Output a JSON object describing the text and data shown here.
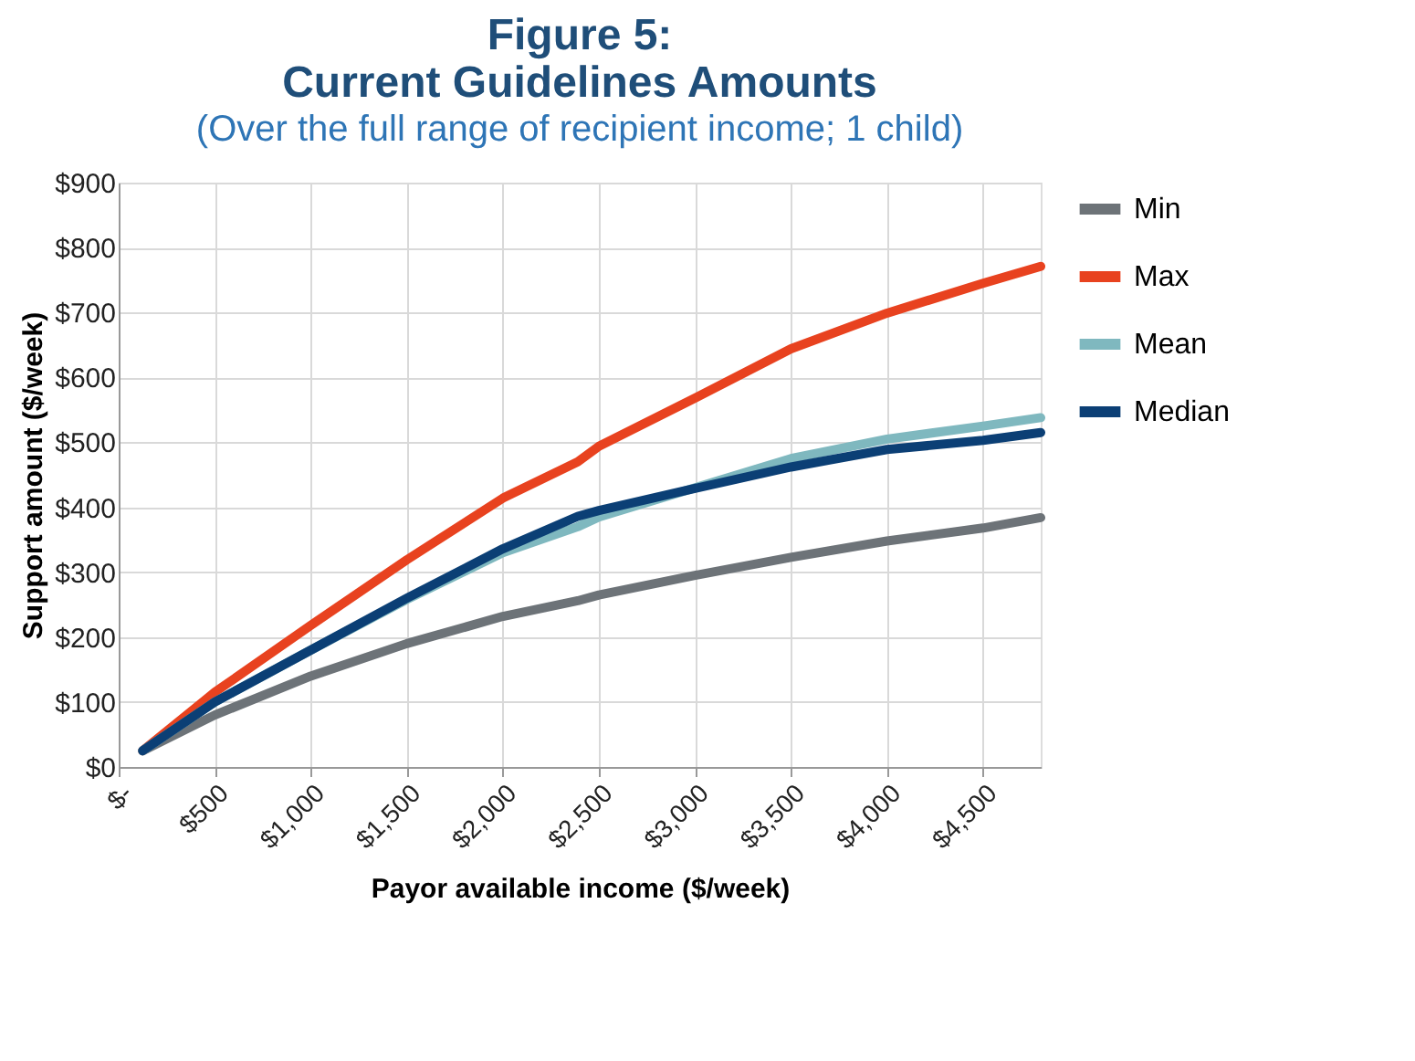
{
  "chart_data": {
    "type": "line",
    "title": "Figure 5:\nCurrent Guidelines Amounts",
    "subtitle": "(Over the full range of recipient income; 1 child)",
    "xlabel": "Payor available income ($/week)",
    "ylabel": "Support amount ($/week)",
    "xlim": [
      0,
      4800
    ],
    "ylim": [
      0,
      900
    ],
    "xticks": [
      {
        "value": 0,
        "label": "$-"
      },
      {
        "value": 500,
        "label": "$500"
      },
      {
        "value": 1000,
        "label": "$1,000"
      },
      {
        "value": 1500,
        "label": "$1,500"
      },
      {
        "value": 2000,
        "label": "$2,000"
      },
      {
        "value": 2500,
        "label": "$2,500"
      },
      {
        "value": 3000,
        "label": "$3,000"
      },
      {
        "value": 3500,
        "label": "$3,500"
      },
      {
        "value": 4000,
        "label": "$4,000"
      },
      {
        "value": 4500,
        "label": "$4,500"
      }
    ],
    "yticks": [
      {
        "value": 0,
        "label": "$0"
      },
      {
        "value": 100,
        "label": "$100"
      },
      {
        "value": 200,
        "label": "$200"
      },
      {
        "value": 300,
        "label": "$300"
      },
      {
        "value": 400,
        "label": "$400"
      },
      {
        "value": 500,
        "label": "$500"
      },
      {
        "value": 600,
        "label": "$600"
      },
      {
        "value": 700,
        "label": "$700"
      },
      {
        "value": 800,
        "label": "$800"
      },
      {
        "value": 900,
        "label": "$900"
      }
    ],
    "x": [
      125,
      500,
      1000,
      1500,
      2000,
      2390,
      2500,
      3000,
      3500,
      4000,
      4500,
      4800
    ],
    "series": [
      {
        "name": "Min",
        "color": "#6d7378",
        "values": [
          25,
          80,
          140,
          190,
          232,
          256,
          265,
          295,
          323,
          348,
          368,
          384
        ]
      },
      {
        "name": "Max",
        "color": "#e8421f",
        "values": [
          25,
          115,
          218,
          319,
          414,
          470,
          494,
          568,
          644,
          699,
          745,
          771
        ]
      },
      {
        "name": "Mean",
        "color": "#7fb8bf",
        "values": [
          25,
          100,
          180,
          258,
          330,
          370,
          385,
          430,
          475,
          505,
          525,
          538
        ]
      },
      {
        "name": "Median",
        "color": "#0b3f75",
        "values": [
          25,
          100,
          180,
          260,
          336,
          386,
          395,
          429,
          462,
          489,
          503,
          515
        ]
      }
    ],
    "grid": true,
    "legend": "right",
    "marker": "none",
    "line_style": "solid"
  }
}
